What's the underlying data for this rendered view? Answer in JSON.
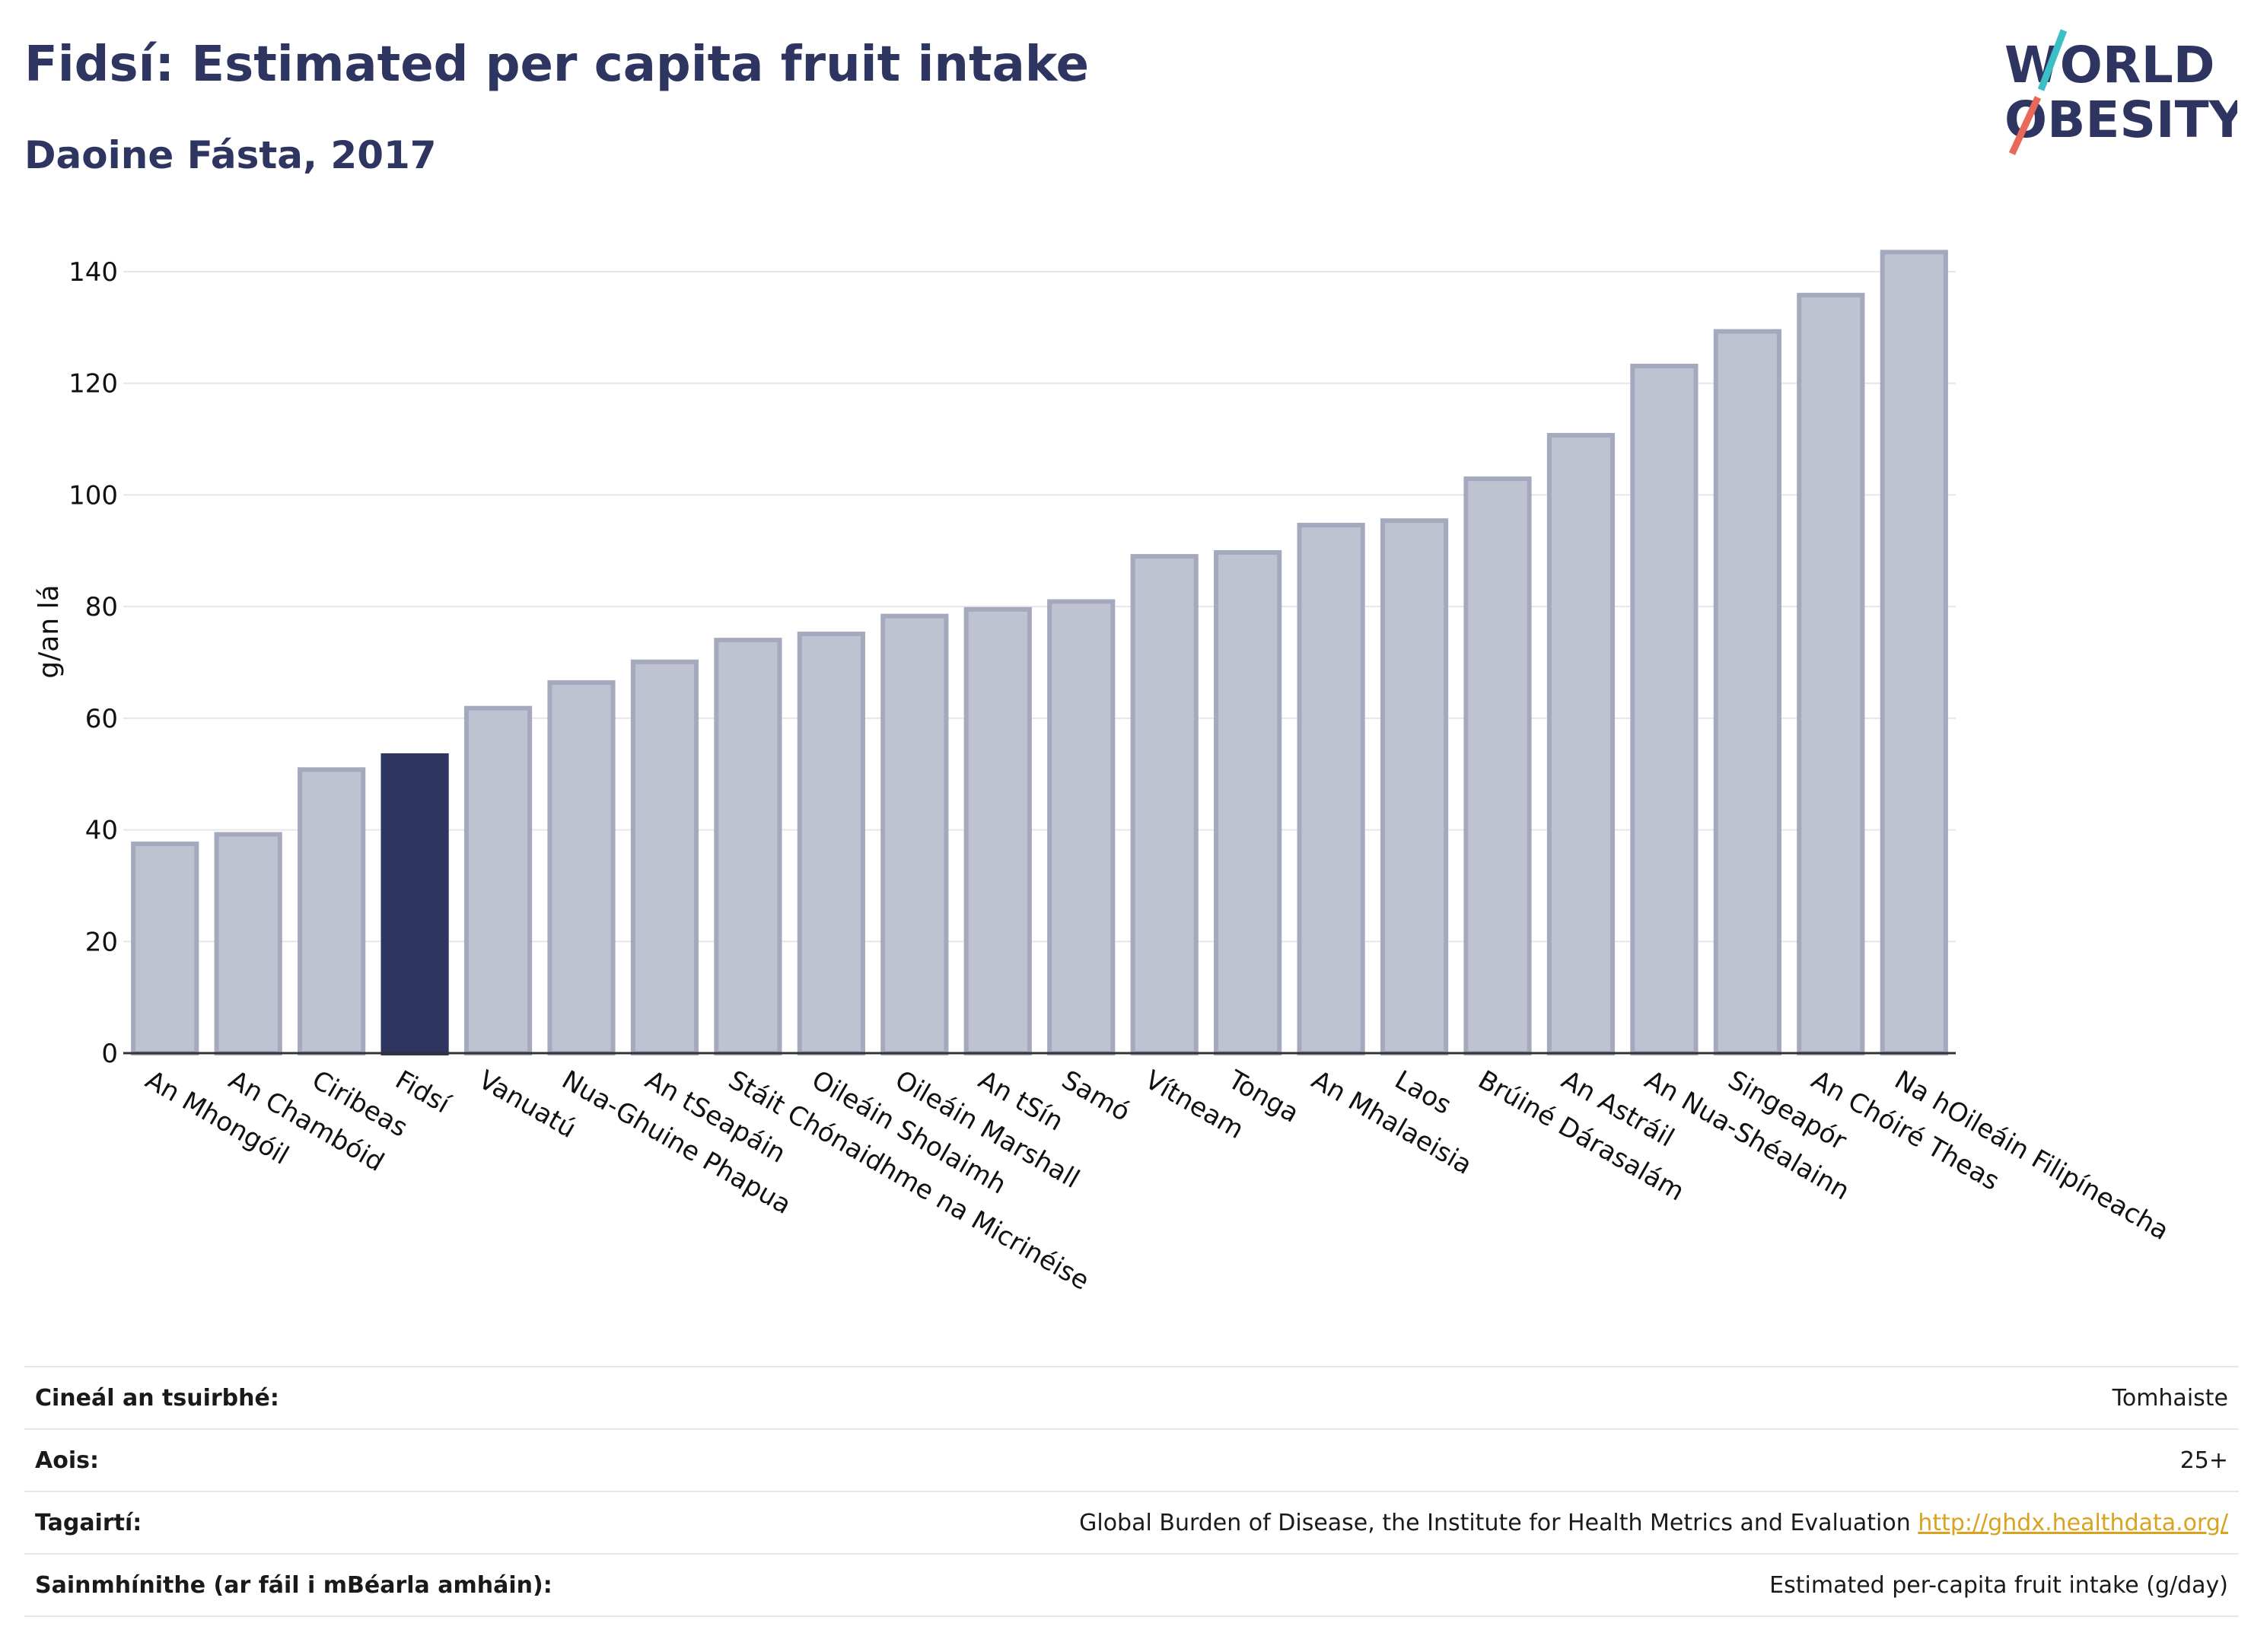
{
  "header": {
    "title": "Fidsí: Estimated per capita fruit intake",
    "subtitle": "Daoine Fásta, 2017"
  },
  "logo": {
    "line1": "WORLD",
    "line2": "OBESITY",
    "icon": "world-obesity-logo"
  },
  "colors": {
    "highlight": "#2e3561",
    "bar": "#bfc2d0",
    "bar_stroke": "#a5a9bd",
    "accent_red": "#e8695a",
    "accent_teal": "#3bbfc4"
  },
  "chart_data": {
    "type": "bar",
    "ylabel": "g/an lá",
    "xlabel": "",
    "ylim": [
      0,
      150
    ],
    "yticks": [
      0,
      20,
      40,
      60,
      80,
      100,
      120,
      140
    ],
    "grid": true,
    "highlight": "Fidsí",
    "categories": [
      "An Mhongóil",
      "An Chambóid",
      "Ciribeas",
      "Fidsí",
      "Vanuatú",
      "Nua-Ghuine Phapua",
      "An tSeapáin",
      "Stáit Chónaidhme na Micrinéise",
      "Oileáin Sholaimh",
      "Oileáin Marshall",
      "An tSín",
      "Samó",
      "Vítneam",
      "Tonga",
      "An Mhalaeisia",
      "Laos",
      "Brúiné Dárasalám",
      "An Astráil",
      "An Nua-Shéalainn",
      "Singeapór",
      "An Chóiré Theas",
      "Na hOileáin Filipíneacha"
    ],
    "values": [
      37.5,
      39.2,
      50.8,
      53.3,
      61.8,
      66.4,
      70.1,
      74.0,
      75.1,
      78.3,
      79.5,
      80.9,
      89.0,
      89.7,
      94.6,
      95.4,
      102.9,
      110.7,
      123.1,
      129.3,
      135.8,
      143.5
    ]
  },
  "info": [
    {
      "label": "Cineál an tsuirbhé:",
      "value": "Tomhaiste"
    },
    {
      "label": "Aois:",
      "value": "25+"
    },
    {
      "label": "Tagairtí:",
      "value": "Global Burden of Disease, the Institute for Health Metrics and Evaluation",
      "link": "http://ghdx.healthdata.org/"
    },
    {
      "label": "Sainmhínithe (ar fáil i mBéarla amháin):",
      "value": "Estimated per-capita fruit intake (g/day)"
    }
  ]
}
